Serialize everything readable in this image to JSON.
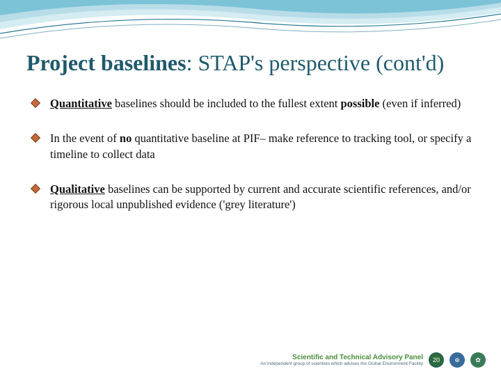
{
  "decoration": {
    "wave_color_1": "#7cc3d8",
    "wave_color_2": "#b8dde8",
    "wave_color_3": "#d4ecf2",
    "line_color": "#2a7a95"
  },
  "title": {
    "bold": "Project baselines",
    "rest": ": STAP's perspective (cont'd)",
    "color": "#1f5a6b"
  },
  "bullet_icon": {
    "fill": "#c46a3a",
    "stroke": "#7a3a1a"
  },
  "bullets": [
    {
      "parts": [
        {
          "text": "Quantitative",
          "bold": true,
          "under": true
        },
        {
          "text": " baselines should be included to the fullest extent "
        },
        {
          "text": "possible",
          "bold": true
        },
        {
          "text": " (even if inferred)"
        }
      ]
    },
    {
      "parts": [
        {
          "text": " In the event of "
        },
        {
          "text": "no",
          "bold": true
        },
        {
          "text": " quantitative baseline at PIF– make reference to tracking tool, or specify a timeline to collect data"
        }
      ]
    },
    {
      "parts": [
        {
          "text": " "
        },
        {
          "text": "Qualitative",
          "bold": true,
          "under": true
        },
        {
          "text": " baselines can be supported by current and  accurate scientific references, and/or rigorous local unpublished evidence ('grey literature')"
        }
      ]
    }
  ],
  "footer": {
    "title": "Scientific and Technical Advisory Panel",
    "subtitle": "An independent group of scientists which advises the Global Environment Facility",
    "logos": [
      "20",
      "⊕",
      "✿"
    ]
  }
}
